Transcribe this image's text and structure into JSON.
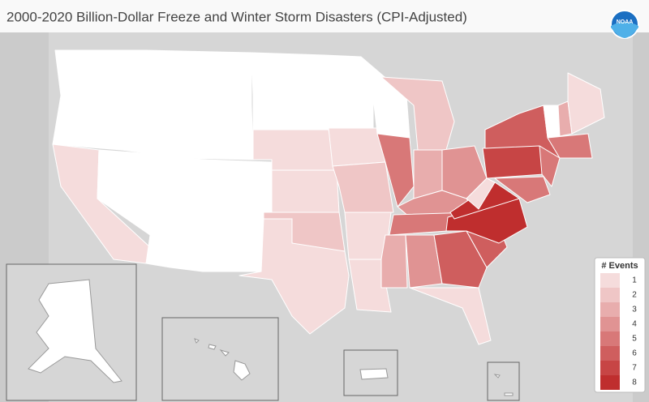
{
  "map": {
    "title": "2000-2020 Billion-Dollar Freeze and Winter Storm Disasters (CPI-Adjusted)",
    "logo": "NOAA",
    "legend": {
      "title": "# Events",
      "items": [
        {
          "label": 1,
          "color": "#f5dcdc"
        },
        {
          "label": 2,
          "color": "#efc6c6"
        },
        {
          "label": 3,
          "color": "#e8adad"
        },
        {
          "label": 4,
          "color": "#e09393"
        },
        {
          "label": 5,
          "color": "#d87878"
        },
        {
          "label": 6,
          "color": "#cf5e5e"
        },
        {
          "label": 7,
          "color": "#c74545"
        },
        {
          "label": 8,
          "color": "#bf2e2e"
        }
      ]
    },
    "regions": [
      0,
      0,
      1,
      0,
      0,
      0,
      0,
      0,
      0,
      0,
      0,
      0,
      0,
      1,
      1,
      2,
      1,
      0,
      1,
      2,
      1,
      1,
      0,
      5,
      2,
      3,
      4,
      4,
      5,
      3,
      4,
      6,
      1,
      6,
      8,
      8,
      1,
      7,
      6,
      5,
      5,
      0,
      3,
      1,
      5
    ]
  }
}
